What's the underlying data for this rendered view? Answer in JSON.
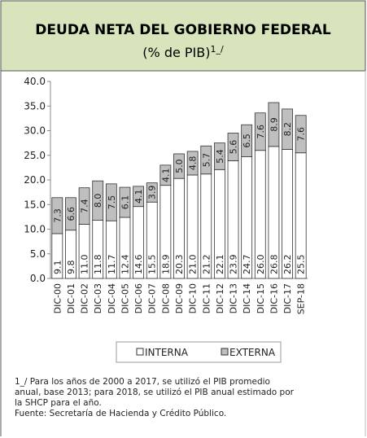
{
  "chart_data": {
    "type": "stacked_bar",
    "title": "DEUDA NETA DEL GOBIERNO FEDERAL",
    "subtitle": "(% de PIB)",
    "subtitle_note": "1_/",
    "categories": [
      "DIC-00",
      "DIC-01",
      "DIC-02",
      "DIC-03",
      "DIC-04",
      "DIC-05",
      "DIC-06",
      "DIC-07",
      "DIC-08",
      "DIC-09",
      "DIC-10",
      "DIC-11",
      "DIC-12",
      "DIC-13",
      "DIC-14",
      "DIC-15",
      "DIC-16",
      "DIC-17",
      "SEP-18"
    ],
    "series": [
      {
        "name": "INTERNA",
        "color": "#ffffff",
        "values": [
          9.1,
          9.8,
          11.0,
          11.8,
          11.7,
          12.4,
          14.6,
          15.5,
          18.9,
          20.3,
          21.0,
          21.2,
          22.1,
          23.9,
          24.7,
          26.0,
          26.8,
          26.2,
          25.5
        ],
        "value_labels": [
          "9.1",
          "9.8",
          "11.0",
          "11.8",
          "11.7",
          "12.4",
          "14.6",
          "15.5",
          "18.9",
          "20.3",
          "21.0",
          "21.2",
          "22.1",
          "23.9",
          "24.7",
          "26.0",
          "26.8",
          "26.2",
          "25.5"
        ]
      },
      {
        "name": "EXTERNA",
        "color": "#bfbfbf",
        "values": [
          7.3,
          6.6,
          7.4,
          8.0,
          7.5,
          6.1,
          4.1,
          3.9,
          4.1,
          5.0,
          4.8,
          5.7,
          5.4,
          5.6,
          6.5,
          7.6,
          8.9,
          8.2,
          7.6
        ],
        "value_labels": [
          "7.3",
          "6.6",
          "7.4",
          "8.0",
          "7.5",
          "6.1",
          "4.1",
          "3.9",
          "4.1",
          "5.0",
          "4.8",
          "5.7",
          "5.4",
          "5.6",
          "6.5",
          "7.6",
          "8.9",
          "8.2",
          "7.6"
        ]
      }
    ],
    "ylim": [
      0,
      40
    ],
    "yticks": [
      {
        "value": 0,
        "label": "0.0"
      },
      {
        "value": 5,
        "label": "5.0"
      },
      {
        "value": 10,
        "label": "10.0"
      },
      {
        "value": 15,
        "label": "15.0"
      },
      {
        "value": 20,
        "label": "20.0"
      },
      {
        "value": 25,
        "label": "25.0"
      },
      {
        "value": 30,
        "label": "30.0"
      },
      {
        "value": 35,
        "label": "35.0"
      },
      {
        "value": 40,
        "label": "40.0"
      }
    ],
    "legend": "bottom",
    "footnotes": [
      "1_/ Para los años de 2000 a 2017, se utilizó el PIB promedio",
      "anual, base 2013; para 2018, se utilizó el PIB anual estimado por",
      "la SHCP para el año.",
      "Fuente: Secretaría de Hacienda y Crédito Público."
    ]
  }
}
